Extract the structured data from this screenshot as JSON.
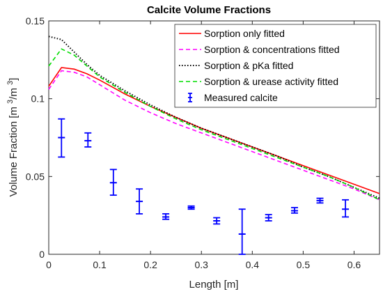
{
  "chart_data": {
    "type": "line",
    "title": "Calcite Volume Fractions",
    "xlabel": "Length [m]",
    "ylabel": "Volume Fraction [m 3/m 3]",
    "ylabel_parts": {
      "main": "Volume Fraction [m ",
      "sup1": "3",
      "mid": "/m ",
      "sup2": "3",
      "end": "]"
    },
    "xlim": [
      0,
      0.65
    ],
    "ylim": [
      0,
      0.15
    ],
    "xticks": [
      0,
      0.1,
      0.2,
      0.3,
      0.4,
      0.5,
      0.6
    ],
    "xtick_labels": [
      "0",
      "0.1",
      "0.2",
      "0.3",
      "0.4",
      "0.5",
      "0.6"
    ],
    "yticks": [
      0,
      0.05,
      0.1,
      0.15
    ],
    "ytick_labels": [
      "0",
      "0.05",
      "0.1",
      "0.15"
    ],
    "legend_position": "top-right",
    "series": [
      {
        "name": "Sorption only fitted",
        "color": "#ff0000",
        "style": "solid",
        "x": [
          0,
          0.025,
          0.05,
          0.075,
          0.1,
          0.15,
          0.2,
          0.25,
          0.3,
          0.35,
          0.4,
          0.45,
          0.5,
          0.55,
          0.6,
          0.65
        ],
        "y": [
          0.108,
          0.12,
          0.119,
          0.116,
          0.112,
          0.103,
          0.095,
          0.088,
          0.081,
          0.075,
          0.069,
          0.063,
          0.057,
          0.051,
          0.045,
          0.039
        ]
      },
      {
        "name": "Sorption & concentrations fitted",
        "color": "#ff00ff",
        "style": "dashed",
        "x": [
          0,
          0.025,
          0.05,
          0.075,
          0.1,
          0.15,
          0.2,
          0.25,
          0.3,
          0.35,
          0.4,
          0.45,
          0.5,
          0.55,
          0.6,
          0.65
        ],
        "y": [
          0.106,
          0.118,
          0.117,
          0.114,
          0.109,
          0.099,
          0.091,
          0.084,
          0.078,
          0.072,
          0.066,
          0.06,
          0.054,
          0.048,
          0.042,
          0.035
        ]
      },
      {
        "name": "Sorption & pKa fitted",
        "color": "#000000",
        "style": "dotted",
        "x": [
          0,
          0.025,
          0.05,
          0.075,
          0.1,
          0.15,
          0.2,
          0.25,
          0.3,
          0.35,
          0.4,
          0.45,
          0.5,
          0.55,
          0.6,
          0.65
        ],
        "y": [
          0.14,
          0.138,
          0.13,
          0.122,
          0.115,
          0.105,
          0.096,
          0.088,
          0.081,
          0.075,
          0.069,
          0.063,
          0.056,
          0.05,
          0.043,
          0.036
        ]
      },
      {
        "name": "Sorption & urease activity fitted",
        "color": "#00dd00",
        "style": "dashed",
        "x": [
          0,
          0.025,
          0.05,
          0.075,
          0.1,
          0.15,
          0.2,
          0.25,
          0.3,
          0.35,
          0.4,
          0.45,
          0.5,
          0.55,
          0.6,
          0.65
        ],
        "y": [
          0.121,
          0.132,
          0.128,
          0.121,
          0.114,
          0.104,
          0.095,
          0.087,
          0.08,
          0.074,
          0.068,
          0.062,
          0.056,
          0.05,
          0.043,
          0.035
        ]
      }
    ],
    "errorbars": {
      "name": "Measured calcite",
      "color": "#0000ff",
      "points": [
        {
          "x": 0.025,
          "y": 0.075,
          "lo": 0.0625,
          "hi": 0.087
        },
        {
          "x": 0.077,
          "y": 0.073,
          "lo": 0.069,
          "hi": 0.078
        },
        {
          "x": 0.127,
          "y": 0.046,
          "lo": 0.038,
          "hi": 0.0545
        },
        {
          "x": 0.178,
          "y": 0.034,
          "lo": 0.026,
          "hi": 0.042
        },
        {
          "x": 0.23,
          "y": 0.024,
          "lo": 0.0225,
          "hi": 0.026
        },
        {
          "x": 0.28,
          "y": 0.03,
          "lo": 0.029,
          "hi": 0.031
        },
        {
          "x": 0.33,
          "y": 0.0215,
          "lo": 0.0195,
          "hi": 0.0235
        },
        {
          "x": 0.38,
          "y": 0.013,
          "lo": 0.0,
          "hi": 0.029
        },
        {
          "x": 0.432,
          "y": 0.0235,
          "lo": 0.0215,
          "hi": 0.0255
        },
        {
          "x": 0.483,
          "y": 0.028,
          "lo": 0.0265,
          "hi": 0.03
        },
        {
          "x": 0.533,
          "y": 0.0345,
          "lo": 0.033,
          "hi": 0.036
        },
        {
          "x": 0.583,
          "y": 0.029,
          "lo": 0.024,
          "hi": 0.035
        }
      ]
    },
    "grid": false
  }
}
